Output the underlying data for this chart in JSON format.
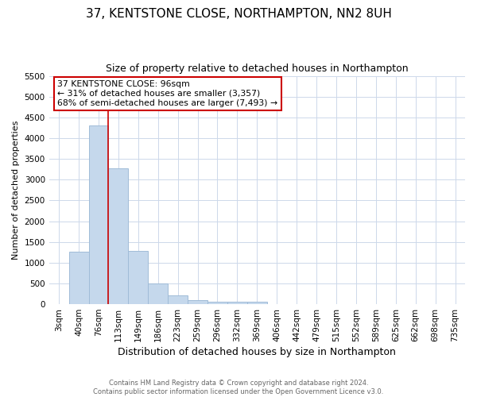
{
  "title": "37, KENTSTONE CLOSE, NORTHAMPTON, NN2 8UH",
  "subtitle": "Size of property relative to detached houses in Northampton",
  "xlabel": "Distribution of detached houses by size in Northampton",
  "ylabel": "Number of detached properties",
  "footer_line1": "Contains HM Land Registry data © Crown copyright and database right 2024.",
  "footer_line2": "Contains public sector information licensed under the Open Government Licence v3.0.",
  "categories": [
    "3sqm",
    "40sqm",
    "76sqm",
    "113sqm",
    "149sqm",
    "186sqm",
    "223sqm",
    "259sqm",
    "296sqm",
    "332sqm",
    "369sqm",
    "406sqm",
    "442sqm",
    "479sqm",
    "515sqm",
    "552sqm",
    "589sqm",
    "625sqm",
    "662sqm",
    "698sqm",
    "735sqm"
  ],
  "values": [
    0,
    1260,
    4310,
    3270,
    1280,
    490,
    220,
    90,
    60,
    50,
    55,
    0,
    0,
    0,
    0,
    0,
    0,
    0,
    0,
    0,
    0
  ],
  "bar_color": "#c5d8ec",
  "bar_edge_color": "#a0bcd8",
  "vline_color": "#cc0000",
  "vline_pos": 2.5,
  "ylim": [
    0,
    5500
  ],
  "yticks": [
    0,
    500,
    1000,
    1500,
    2000,
    2500,
    3000,
    3500,
    4000,
    4500,
    5000,
    5500
  ],
  "annotation_text": "37 KENTSTONE CLOSE: 96sqm\n← 31% of detached houses are smaller (3,357)\n68% of semi-detached houses are larger (7,493) →",
  "annotation_box_color": "#ffffff",
  "annotation_box_edge": "#cc0000",
  "grid_color": "#cdd8ea",
  "background_color": "#ffffff",
  "title_fontsize": 11,
  "subtitle_fontsize": 9,
  "xlabel_fontsize": 9,
  "ylabel_fontsize": 8,
  "tick_fontsize": 7.5
}
